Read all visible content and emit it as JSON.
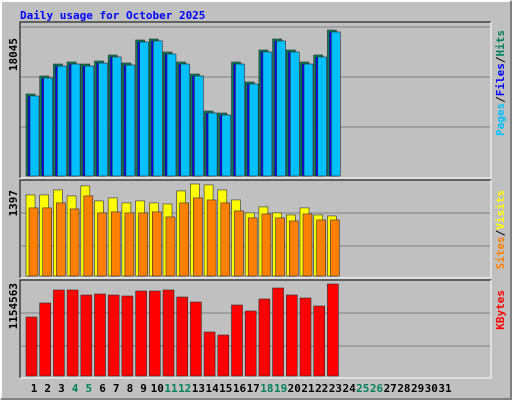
{
  "chart_data": [
    {
      "type": "bar",
      "title": "Daily usage for October 2025",
      "ylim": [
        0,
        18045
      ],
      "yticks": [
        18045
      ],
      "legend_separator": "/",
      "series": [
        {
          "name": "Hits",
          "color": "#00805C",
          "values": [
            10135,
            12360,
            13843,
            14090,
            13843,
            14214,
            14956,
            13967,
            16810,
            16933,
            15326,
            14090,
            12607,
            8034,
            7787,
            14090,
            11618,
            15574,
            16933,
            15574,
            14090,
            14956,
            18045,
            null,
            null,
            null,
            null,
            null,
            null,
            null,
            null
          ]
        },
        {
          "name": "Files",
          "color": "#0000FF",
          "values": [
            9890,
            12110,
            13590,
            13840,
            13590,
            13960,
            14710,
            13720,
            16560,
            16690,
            15080,
            13840,
            12360,
            7790,
            7540,
            13840,
            11370,
            15330,
            16690,
            15330,
            13840,
            14710,
            17800,
            null,
            null,
            null,
            null,
            null,
            null,
            null,
            null
          ]
        },
        {
          "name": "Pages",
          "color": "#00C0FF",
          "values": [
            9890,
            12110,
            13590,
            13840,
            13590,
            13960,
            14710,
            13720,
            16560,
            16690,
            15080,
            13840,
            12360,
            7790,
            7540,
            13840,
            11370,
            15330,
            16690,
            15330,
            13840,
            14710,
            17800,
            null,
            null,
            null,
            null,
            null,
            null,
            null,
            null
          ]
        }
      ]
    },
    {
      "type": "bar",
      "ylim": [
        0,
        1397
      ],
      "yticks": [
        1397
      ],
      "legend_separator": "/",
      "series": [
        {
          "name": "Visits",
          "color": "#FFFF00",
          "values": [
            1231,
            1231,
            1307,
            1216,
            1368,
            1140,
            1186,
            1110,
            1140,
            1110,
            1094,
            1292,
            1397,
            1383,
            1307,
            1155,
            958,
            1049,
            958,
            927,
            1034,
            927,
            912,
            null,
            null,
            null,
            null,
            null,
            null,
            null,
            null
          ]
        },
        {
          "name": "Sites",
          "color": "#FF8000",
          "values": [
            1034,
            1034,
            1110,
            1018,
            1216,
            958,
            973,
            958,
            958,
            973,
            897,
            1110,
            1186,
            1155,
            1110,
            988,
            882,
            942,
            882,
            836,
            942,
            851,
            851,
            null,
            null,
            null,
            null,
            null,
            null,
            null,
            null
          ]
        }
      ]
    },
    {
      "type": "bar",
      "ylim": [
        0,
        1154563
      ],
      "yticks": [
        1154563
      ],
      "categories": [
        "1",
        "2",
        "3",
        "4",
        "5",
        "6",
        "7",
        "8",
        "9",
        "10",
        "11",
        "12",
        "13",
        "14",
        "15",
        "16",
        "17",
        "18",
        "19",
        "20",
        "21",
        "22",
        "23",
        "24",
        "25",
        "26",
        "27",
        "28",
        "29",
        "30",
        "31"
      ],
      "category_colors": [
        "#000000",
        "#000000",
        "#000000",
        "#00805C",
        "#00805C",
        "#000000",
        "#000000",
        "#000000",
        "#000000",
        "#000000",
        "#00805C",
        "#00805C",
        "#000000",
        "#000000",
        "#000000",
        "#000000",
        "#000000",
        "#00805C",
        "#00805C",
        "#000000",
        "#000000",
        "#000000",
        "#000000",
        "#000000",
        "#00805C",
        "#00805C",
        "#000000",
        "#000000",
        "#000000",
        "#000000",
        "#000000"
      ],
      "series": [
        {
          "name": "KBytes",
          "color": "#FF0000",
          "values": [
            740450,
            916150,
            1079300,
            1079300,
            1016550,
            1029100,
            1016550,
            1004000,
            1066750,
            1066750,
            1079300,
            991450,
            928700,
            552200,
            514550,
            891050,
            815750,
            966350,
            1104400,
            1016550,
            979000,
            878500,
            1154563,
            null,
            null,
            null,
            null,
            null,
            null,
            null,
            null
          ]
        }
      ]
    }
  ]
}
